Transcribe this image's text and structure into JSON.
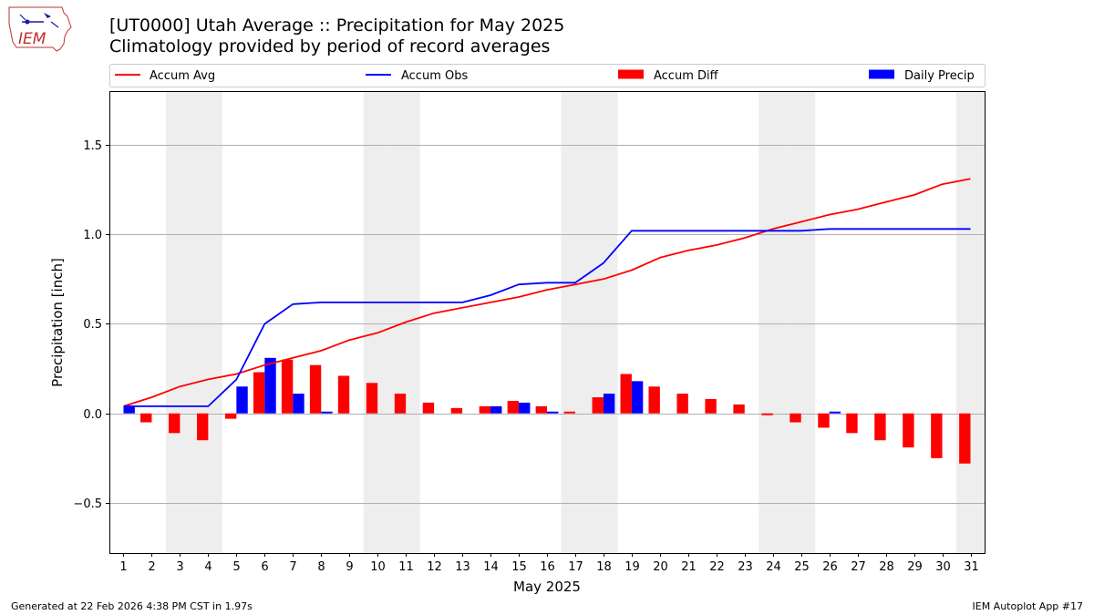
{
  "branding": {
    "logo_text": "IEM"
  },
  "header": {
    "title_line1": "[UT0000] Utah Average :: Precipitation for May 2025",
    "title_line2": "Climatology provided by period of record averages"
  },
  "footer": {
    "generated": "Generated at 22 Feb 2026 4:38 PM CST in 1.97s",
    "app": "IEM Autoplot App #17"
  },
  "colors": {
    "avg": "#ff0000",
    "obs": "#0000ff",
    "diff": "#ff0000",
    "daily": "#0000ff",
    "weekend": "#eeeeee",
    "grid": "#b0b0b0"
  },
  "chart_data": {
    "type": "bar",
    "title": "[UT0000] Utah Average :: Precipitation for May 2025",
    "subtitle": "Climatology provided by period of record averages",
    "xlabel": "May 2025",
    "ylabel": "Precipitation [inch]",
    "xlim": [
      0.5,
      31.5
    ],
    "ylim": [
      -0.78,
      1.8
    ],
    "yticks": [
      -0.5,
      0.0,
      0.5,
      1.0,
      1.5
    ],
    "ytick_labels": [
      "−0.5",
      "0.0",
      "0.5",
      "1.0",
      "1.5"
    ],
    "grid": true,
    "legend_position": "top",
    "categories": [
      "1",
      "2",
      "3",
      "4",
      "5",
      "6",
      "7",
      "8",
      "9",
      "10",
      "11",
      "12",
      "13",
      "14",
      "15",
      "16",
      "17",
      "18",
      "19",
      "20",
      "21",
      "22",
      "23",
      "24",
      "25",
      "26",
      "27",
      "28",
      "29",
      "30",
      "31"
    ],
    "weekend_days": [
      3,
      4,
      10,
      11,
      17,
      18,
      24,
      25,
      31
    ],
    "legend": [
      "Accum Avg",
      "Accum Obs",
      "Accum Diff",
      "Daily Precip"
    ],
    "series": [
      {
        "name": "Accum Avg",
        "kind": "line",
        "values": [
          0.04,
          0.09,
          0.15,
          0.19,
          0.22,
          0.27,
          0.31,
          0.35,
          0.41,
          0.45,
          0.51,
          0.56,
          0.59,
          0.62,
          0.65,
          0.69,
          0.72,
          0.75,
          0.8,
          0.87,
          0.91,
          0.94,
          0.98,
          1.03,
          1.07,
          1.11,
          1.14,
          1.18,
          1.22,
          1.28,
          1.31
        ]
      },
      {
        "name": "Accum Obs",
        "kind": "line",
        "values": [
          0.04,
          0.04,
          0.04,
          0.04,
          0.19,
          0.5,
          0.61,
          0.62,
          0.62,
          0.62,
          0.62,
          0.62,
          0.62,
          0.66,
          0.72,
          0.73,
          0.73,
          0.84,
          1.02,
          1.02,
          1.02,
          1.02,
          1.02,
          1.02,
          1.02,
          1.03,
          1.03,
          1.03,
          1.03,
          1.03,
          1.03
        ]
      },
      {
        "name": "Accum Diff",
        "kind": "bar",
        "values": [
          0.0,
          -0.05,
          -0.11,
          -0.15,
          -0.03,
          0.23,
          0.3,
          0.27,
          0.21,
          0.17,
          0.11,
          0.06,
          0.03,
          0.04,
          0.07,
          0.04,
          0.01,
          0.09,
          0.22,
          0.15,
          0.11,
          0.08,
          0.05,
          -0.01,
          -0.05,
          -0.08,
          -0.11,
          -0.15,
          -0.19,
          -0.25,
          -0.28
        ]
      },
      {
        "name": "Daily Precip",
        "kind": "bar",
        "values": [
          0.04,
          0.0,
          0.0,
          0.0,
          0.15,
          0.31,
          0.11,
          0.01,
          0.0,
          0.0,
          0.0,
          0.0,
          0.0,
          0.04,
          0.06,
          0.01,
          0.0,
          0.11,
          0.18,
          0.0,
          0.0,
          0.0,
          0.0,
          0.0,
          0.0,
          0.01,
          0.0,
          0.0,
          0.0,
          0.0,
          0.0
        ]
      }
    ]
  }
}
